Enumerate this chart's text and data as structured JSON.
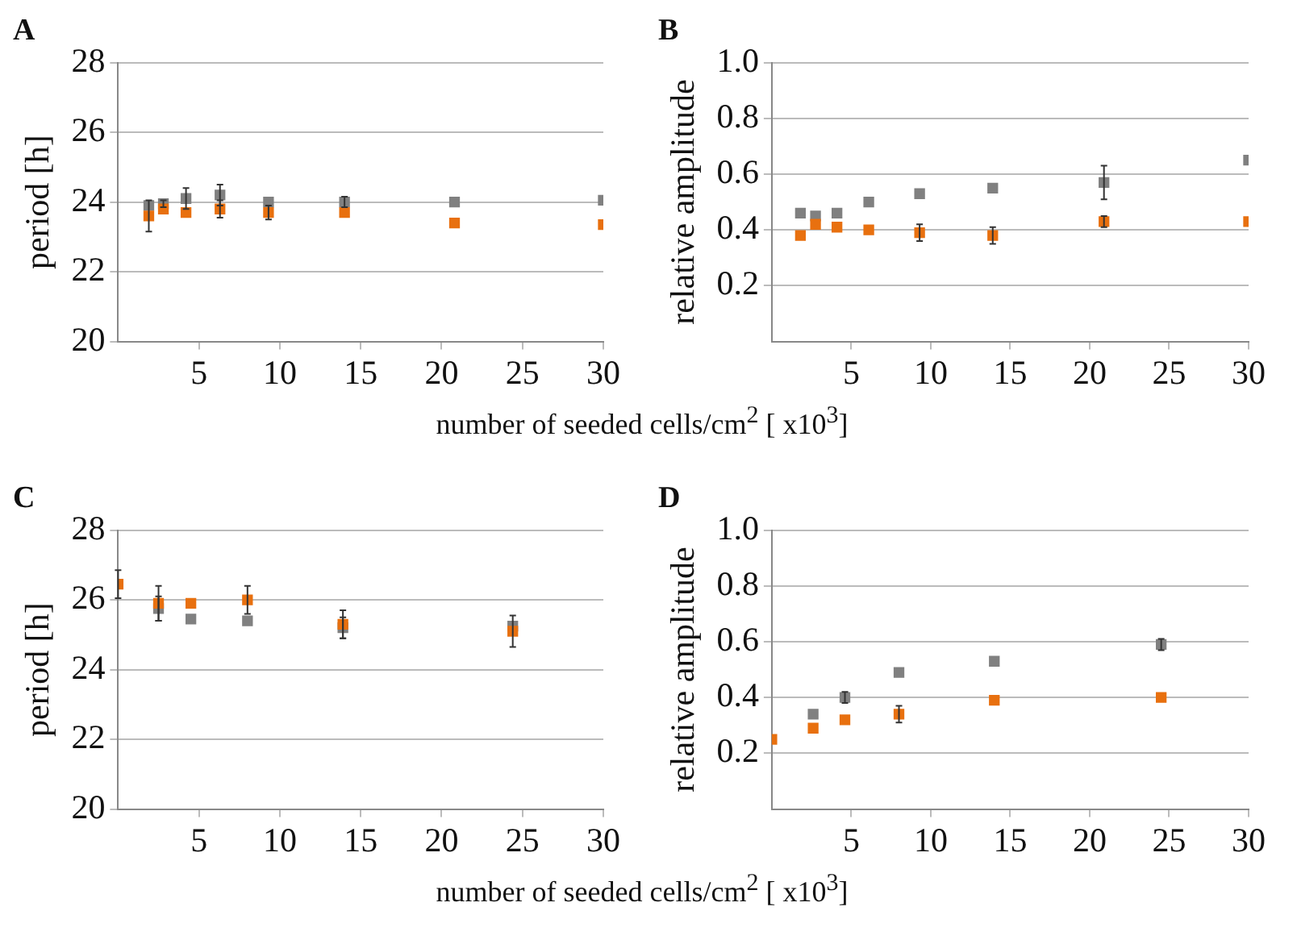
{
  "chart_data": [
    {
      "type": "scatter",
      "title": "A",
      "ylabel": "period [h]",
      "xlabel": "number of seeded cells/cm$^{2}$ [ x10$^{3}$]",
      "xlim": [
        0,
        30
      ],
      "xticks": [
        5,
        10,
        15,
        20,
        25,
        30
      ],
      "ylim": [
        20,
        28
      ],
      "yticks": [
        20,
        22,
        24,
        26,
        28
      ],
      "grid": "y",
      "marker": "square",
      "series": [
        {
          "color": "#808080",
          "x": [
            1.9,
            2.8,
            4.2,
            6.3,
            9.3,
            14,
            20.8,
            30
          ],
          "values": [
            23.9,
            23.95,
            24.1,
            24.2,
            24.0,
            24.0,
            24.0,
            24.05
          ],
          "errors": [
            null,
            0.1,
            0.3,
            0.3,
            null,
            0.15,
            null,
            null
          ]
        },
        {
          "color": "#e8700f",
          "x": [
            1.9,
            2.8,
            4.2,
            6.3,
            9.3,
            14,
            20.8,
            30
          ],
          "values": [
            23.6,
            23.8,
            23.7,
            23.8,
            23.7,
            23.7,
            23.4,
            23.35
          ],
          "errors": [
            0.45,
            null,
            null,
            0.25,
            0.2,
            null,
            null,
            null
          ]
        }
      ]
    },
    {
      "type": "scatter",
      "title": "B",
      "ylabel": "relative amplitude",
      "xlim": [
        0,
        30
      ],
      "xticks": [
        5,
        10,
        15,
        20,
        25,
        30
      ],
      "ylim": [
        0,
        1
      ],
      "yticks": [
        0.2,
        0.4,
        0.6,
        0.8,
        {
          "value": 1,
          "label": "1.0"
        }
      ],
      "grid": "y",
      "marker": "square",
      "series": [
        {
          "color": "#808080",
          "x": [
            1.8,
            2.75,
            4.1,
            6.1,
            9.3,
            13.9,
            20.9,
            30
          ],
          "values": [
            0.46,
            0.45,
            0.46,
            0.5,
            0.53,
            0.55,
            0.57,
            0.65
          ],
          "errors": [
            null,
            null,
            null,
            null,
            null,
            null,
            0.06,
            null
          ]
        },
        {
          "color": "#e8700f",
          "x": [
            1.8,
            2.75,
            4.1,
            6.1,
            9.3,
            13.9,
            20.9,
            30
          ],
          "values": [
            0.38,
            0.42,
            0.41,
            0.4,
            0.39,
            0.38,
            0.43,
            0.43
          ],
          "errors": [
            null,
            null,
            null,
            null,
            0.03,
            0.03,
            0.02,
            null
          ]
        }
      ]
    },
    {
      "type": "scatter",
      "title": "C",
      "ylabel": "period [h]",
      "xlabel": "number of seeded cells/cm$^{2}$ [ x10$^{3}$]",
      "xlim": [
        0,
        30
      ],
      "xticks": [
        5,
        10,
        15,
        20,
        25,
        30
      ],
      "ylim": [
        20,
        28
      ],
      "yticks": [
        20,
        22,
        24,
        26,
        28
      ],
      "grid": "y",
      "marker": "square",
      "series": [
        {
          "color": "#808080",
          "x": [
            2.5,
            4.5,
            8,
            13.9,
            24.4
          ],
          "values": [
            25.75,
            25.45,
            25.4,
            25.2,
            25.25
          ],
          "errors": [
            0.35,
            null,
            null,
            0.3,
            null
          ]
        },
        {
          "color": "#e8700f",
          "x": [
            0,
            2.5,
            4.5,
            8,
            13.9,
            24.4
          ],
          "values": [
            26.45,
            25.9,
            25.9,
            26.0,
            25.3,
            25.1
          ],
          "errors": [
            0.4,
            0.5,
            null,
            0.4,
            0.4,
            0.45
          ]
        }
      ]
    },
    {
      "type": "scatter",
      "title": "D",
      "ylabel": "relative amplitude",
      "xlim": [
        0,
        30
      ],
      "xticks": [
        5,
        10,
        15,
        20,
        25,
        30
      ],
      "ylim": [
        0,
        1
      ],
      "yticks": [
        0.2,
        0.4,
        0.6,
        0.8,
        {
          "value": 1,
          "label": "1.0"
        }
      ],
      "grid": "y",
      "marker": "square",
      "series": [
        {
          "color": "#808080",
          "x": [
            2.6,
            4.6,
            8,
            14,
            24.5
          ],
          "values": [
            0.34,
            0.4,
            0.49,
            0.53,
            0.59
          ],
          "errors": [
            null,
            0.02,
            null,
            null,
            0.02
          ]
        },
        {
          "color": "#e8700f",
          "x": [
            0,
            2.6,
            4.6,
            8,
            14,
            24.5
          ],
          "values": [
            0.25,
            0.29,
            0.32,
            0.34,
            0.39,
            0.4
          ],
          "errors": [
            null,
            null,
            null,
            0.03,
            null,
            null
          ]
        }
      ]
    }
  ]
}
